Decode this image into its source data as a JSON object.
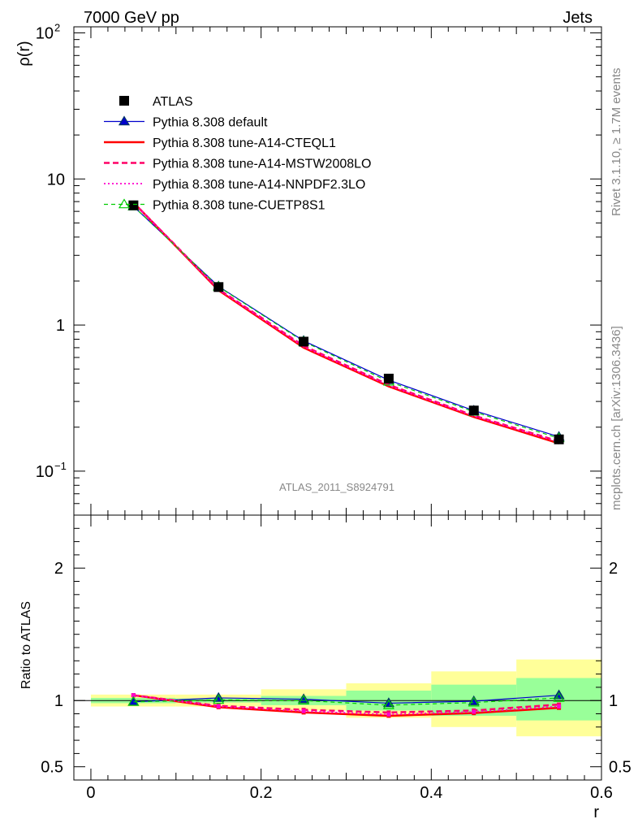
{
  "header": {
    "left": "7000 GeV pp",
    "right": "Jets"
  },
  "side_text": {
    "rivet": "Rivet 3.1.10, ≥ 1.7M events",
    "mcplots": "mcplots.cern.ch [arXiv:1306.3436]"
  },
  "analysis_label": "ATLAS_2011_S8924791",
  "colors": {
    "data": "#000000",
    "default": "#0000cc",
    "cteql1": "#ff0000",
    "mstw": "#ff0066",
    "nnpdf": "#ff00cc",
    "cuetp": "#00cc00",
    "band_inner": "#99ff99",
    "band_outer": "#ffff99"
  },
  "chart_data": [
    {
      "type": "line",
      "panel": "main",
      "ylabel": "ρ(r)",
      "yscale": "log",
      "ylim": [
        0.05,
        110
      ],
      "xlim": [
        -0.02,
        0.6
      ],
      "ytick_labels": [
        "10−1",
        "1",
        "10",
        "102"
      ],
      "legend_position": "upper-left",
      "x": [
        0.05,
        0.15,
        0.25,
        0.35,
        0.45,
        0.55
      ],
      "bin_edges": [
        0.0,
        0.1,
        0.2,
        0.3,
        0.4,
        0.5,
        0.6
      ],
      "series": [
        {
          "name": "ATLAS",
          "key": "data",
          "style": "marker-square",
          "values": [
            6.6,
            1.82,
            0.77,
            0.43,
            0.26,
            0.165
          ]
        },
        {
          "name": "Pythia 8.308 default",
          "key": "default",
          "style": "solid-triangle",
          "values": [
            6.5,
            1.84,
            0.78,
            0.42,
            0.26,
            0.172
          ]
        },
        {
          "name": "Pythia 8.308 tune-A14-CTEQL1",
          "key": "cteql1",
          "style": "solid-thick",
          "values": [
            6.9,
            1.73,
            0.7,
            0.38,
            0.235,
            0.155
          ]
        },
        {
          "name": "Pythia 8.308 tune-A14-MSTW2008LO",
          "key": "mstw",
          "style": "dashed-thick",
          "values": [
            6.9,
            1.76,
            0.72,
            0.39,
            0.24,
            0.16
          ]
        },
        {
          "name": "Pythia 8.308 tune-A14-NNPDF2.3LO",
          "key": "nnpdf",
          "style": "dotted",
          "values": [
            6.9,
            1.75,
            0.71,
            0.385,
            0.238,
            0.158
          ]
        },
        {
          "name": "Pythia 8.308 tune-CUETP8S1",
          "key": "cuetp",
          "style": "dashed-open-triangle",
          "values": [
            6.5,
            1.83,
            0.77,
            0.41,
            0.255,
            0.168
          ]
        }
      ]
    },
    {
      "type": "line",
      "panel": "ratio",
      "xlabel": "r",
      "ylabel": "Ratio to ATLAS",
      "ylim": [
        0.4,
        2.4
      ],
      "xlim": [
        -0.02,
        0.6
      ],
      "xtick_labels": [
        "0",
        "0.2",
        "0.4",
        "0.6"
      ],
      "ytick_labels": [
        "0.5",
        "1",
        "2"
      ],
      "x": [
        0.05,
        0.15,
        0.25,
        0.35,
        0.45,
        0.55
      ],
      "bin_edges": [
        0.0,
        0.1,
        0.2,
        0.3,
        0.4,
        0.5,
        0.6
      ],
      "band_inner": {
        "low": [
          0.98,
          0.985,
          0.965,
          0.925,
          0.885,
          0.85
        ],
        "high": [
          1.02,
          1.015,
          1.035,
          1.075,
          1.12,
          1.17
        ]
      },
      "band_outer": {
        "low": [
          0.955,
          0.955,
          0.925,
          0.87,
          0.8,
          0.73
        ],
        "high": [
          1.045,
          1.045,
          1.085,
          1.13,
          1.22,
          1.31
        ]
      },
      "series": [
        {
          "key": "default",
          "style": "solid-triangle",
          "values": [
            0.99,
            1.02,
            1.01,
            0.98,
            0.995,
            1.04
          ]
        },
        {
          "key": "cteql1",
          "style": "solid-thick",
          "values": [
            1.04,
            0.95,
            0.91,
            0.885,
            0.905,
            0.945
          ]
        },
        {
          "key": "mstw",
          "style": "dashed-thick",
          "values": [
            1.04,
            0.96,
            0.93,
            0.91,
            0.925,
            0.97
          ]
        },
        {
          "key": "nnpdf",
          "style": "dotted",
          "values": [
            1.04,
            0.955,
            0.92,
            0.895,
            0.915,
            0.955
          ]
        },
        {
          "key": "cuetp",
          "style": "dashed-open-triangle",
          "values": [
            0.99,
            1.005,
            1.0,
            0.965,
            0.985,
            1.02
          ]
        }
      ]
    }
  ]
}
